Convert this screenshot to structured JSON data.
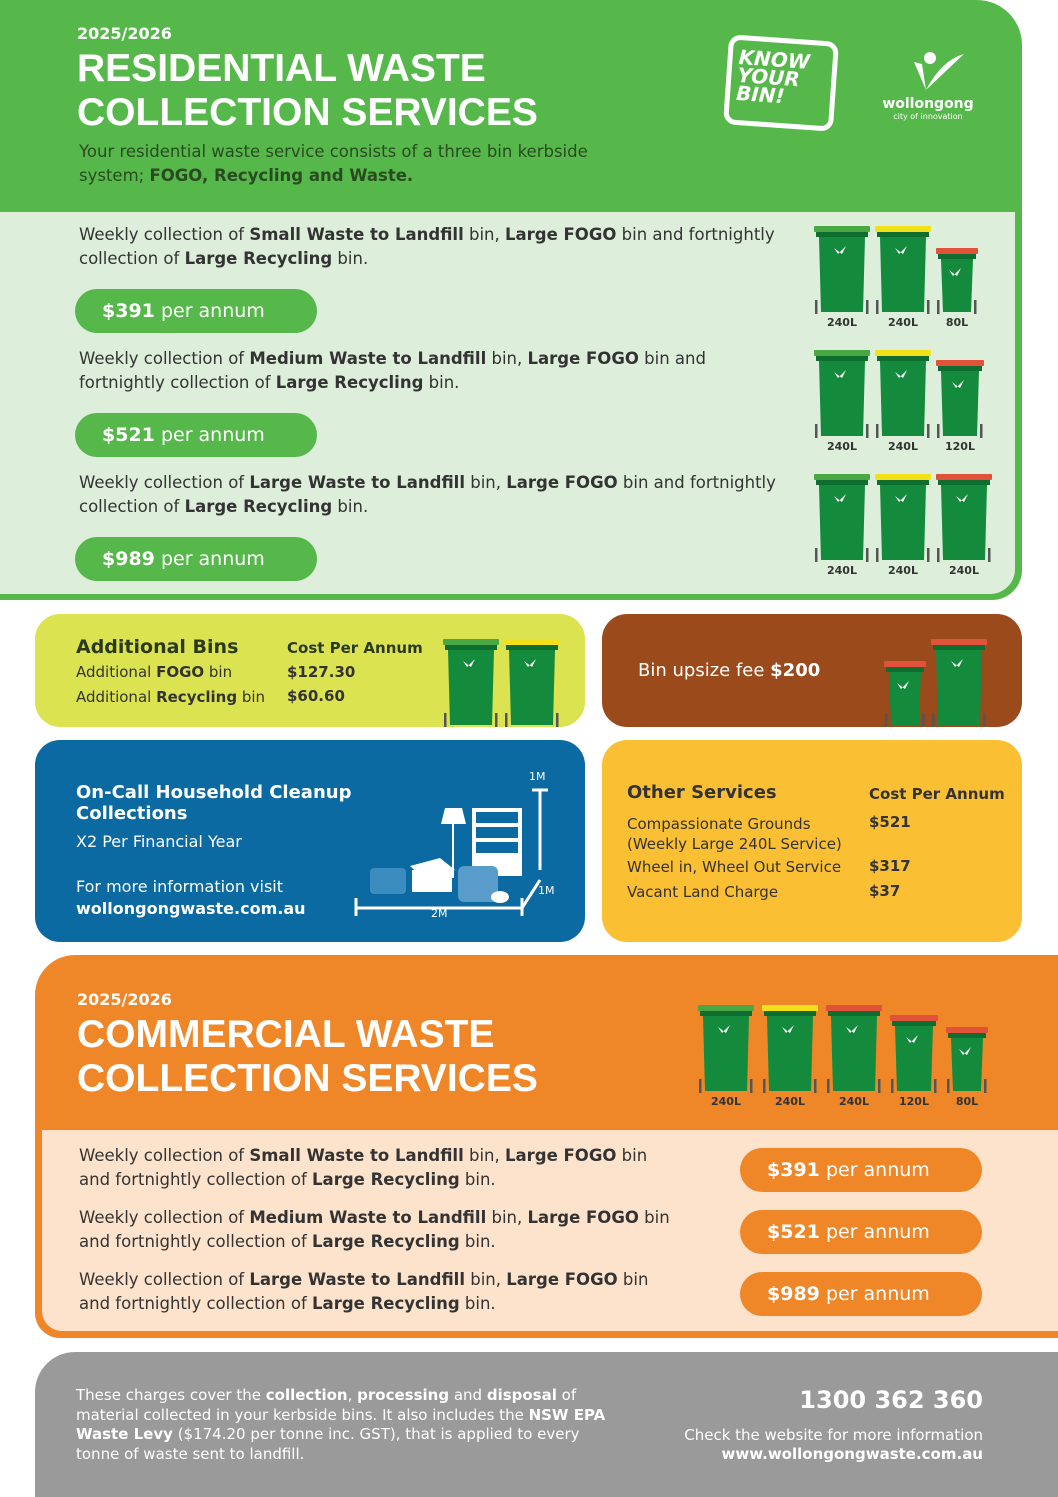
{
  "residential": {
    "year": "2025/2026",
    "title_line1": "RESIDENTIAL WASTE",
    "title_line2": "COLLECTION SERVICES",
    "intro": "Your residential waste service consists of a three bin kerbside system;",
    "intro_bold": "FOGO, Recycling and Waste.",
    "logos": {
      "know_your_bin": "KNOW YOUR BIN!",
      "council": "wollongong",
      "tagline": "city of innovation"
    },
    "services": [
      {
        "pre": "Weekly collection of ",
        "b1": "Small Waste to Landfill",
        "m1": " bin, ",
        "b2": "Large FOGO",
        "m2": " bin and fortnightly collection of ",
        "b3": "Large Recycling",
        "post": " bin.",
        "price": "$391",
        "unit": "per annum",
        "bins": [
          {
            "size": "240L",
            "lid": "green"
          },
          {
            "size": "240L",
            "lid": "yellow"
          },
          {
            "size": "80L",
            "lid": "red"
          }
        ]
      },
      {
        "pre": "Weekly collection of ",
        "b1": "Medium Waste to Landfill",
        "m1": " bin, ",
        "b2": "Large FOGO",
        "m2": " bin and fortnightly collection of ",
        "b3": "Large Recycling",
        "post": " bin.",
        "price": "$521",
        "unit": "per annum",
        "bins": [
          {
            "size": "240L",
            "lid": "green"
          },
          {
            "size": "240L",
            "lid": "yellow"
          },
          {
            "size": "120L",
            "lid": "red"
          }
        ]
      },
      {
        "pre": "Weekly collection of ",
        "b1": "Large Waste to Landfill",
        "m1": " bin, ",
        "b2": "Large FOGO",
        "m2": " bin and fortnightly collection of ",
        "b3": "Large Recycling",
        "post": " bin.",
        "price": "$989",
        "unit": "per annum",
        "bins": [
          {
            "size": "240L",
            "lid": "green"
          },
          {
            "size": "240L",
            "lid": "yellow"
          },
          {
            "size": "240L",
            "lid": "red"
          }
        ]
      }
    ]
  },
  "additional": {
    "title": "Additional Bins",
    "cost_header": "Cost Per Annum",
    "rows": [
      {
        "pre": "Additional ",
        "bold": "FOGO",
        "post": " bin",
        "cost": "$127.30"
      },
      {
        "pre": "Additional ",
        "bold": "Recycling",
        "post": " bin",
        "cost": "$60.60"
      }
    ]
  },
  "upsize": {
    "label": "Bin upsize fee ",
    "price": "$200"
  },
  "cleanup": {
    "title": "On-Call Household Cleanup Collections",
    "freq": "X2 Per Financial Year",
    "info": "For more information visit",
    "url": "wollongongwaste.com.au",
    "dims": {
      "height": "1M",
      "depth": "1M",
      "width": "2M"
    }
  },
  "other": {
    "title": "Other Services",
    "cost_header": "Cost Per Annum",
    "rows": [
      {
        "label": "Compassionate Grounds",
        "sub": "(Weekly Large 240L Service)",
        "cost": "$521"
      },
      {
        "label": "Wheel in, Wheel Out Service",
        "cost": "$317"
      },
      {
        "label": "Vacant Land Charge",
        "cost": "$37"
      }
    ]
  },
  "commercial": {
    "year": "2025/2026",
    "title_line1": "COMMERCIAL WASTE",
    "title_line2": "COLLECTION SERVICES",
    "bins": [
      {
        "size": "240L",
        "lid": "green"
      },
      {
        "size": "240L",
        "lid": "yellow"
      },
      {
        "size": "240L",
        "lid": "red"
      },
      {
        "size": "120L",
        "lid": "red"
      },
      {
        "size": "80L",
        "lid": "red"
      }
    ],
    "services": [
      {
        "pre": "Weekly collection of ",
        "b1": "Small Waste to Landfill",
        "m1": " bin, ",
        "b2": "Large FOGO",
        "m2": " bin and fortnightly collection of ",
        "b3": "Large Recycling",
        "post": " bin.",
        "price": "$391",
        "unit": "per annum"
      },
      {
        "pre": "Weekly collection of ",
        "b1": "Medium Waste to Landfill",
        "m1": " bin, ",
        "b2": "Large FOGO",
        "m2": " bin and fortnightly collection of ",
        "b3": "Large Recycling",
        "post": " bin.",
        "price": "$521",
        "unit": "per annum"
      },
      {
        "pre": "Weekly collection of ",
        "b1": "Large Waste to Landfill",
        "m1": " bin, ",
        "b2": "Large FOGO",
        "m2": " bin and fortnightly collection of ",
        "b3": "Large Recycling",
        "post": " bin.",
        "price": "$989",
        "unit": "per annum"
      }
    ]
  },
  "footer": {
    "t1": "These charges cover the ",
    "b1": "collection",
    "t2": ", ",
    "b2": "processing",
    "t3": " and ",
    "b3": "disposal",
    "t4": " of material collected in your kerbside bins. It also includes the ",
    "b4": "NSW EPA Waste Levy",
    "t5": " ($174.20 per tonne inc. GST), that is applied to every tonne of waste sent to landfill.",
    "phone": "1300 362 360",
    "check": "Check the website for more information",
    "url": "www.wollongongwaste.com.au"
  },
  "colors": {
    "green": "#56b84a",
    "lid_green": "#4aa844",
    "lid_yellow": "#f2e11a",
    "lid_red": "#e0533a",
    "bin_body": "#138a3c",
    "orange": "#ef8628",
    "blue": "#0a6aa1",
    "brown": "#9b4a1c",
    "lime": "#dce350",
    "gold": "#fbbf33",
    "grey": "#9a9a9a"
  }
}
